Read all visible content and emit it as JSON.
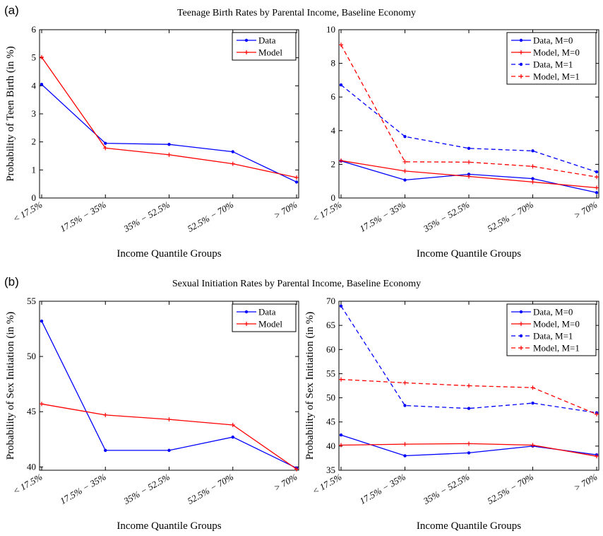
{
  "panels": [
    {
      "label": "(a)",
      "title": "Teenage Birth Rates by Parental Income, Baseline Economy"
    },
    {
      "label": "(b)",
      "title": "Sexual Initiation Rates by Parental Income, Baseline Economy"
    }
  ],
  "colors": {
    "data": "#0000ff",
    "model": "#ff0000",
    "axis": "#000000"
  },
  "chart_data": [
    {
      "type": "line",
      "categories": [
        "< 17.5%",
        "17.5% − 35%",
        "35% − 52.5%",
        "52.5% − 70%",
        "> 70%"
      ],
      "xlabel": "Income Quantile Groups",
      "ylabel": "Probability of Teen Birth (in %)",
      "ylim": [
        0,
        6
      ],
      "yticks": [
        0,
        1,
        2,
        3,
        4,
        5,
        6
      ],
      "legend_position": "top-right",
      "series": [
        {
          "name": "Data",
          "values": [
            4.05,
            1.95,
            1.91,
            1.65,
            0.57
          ],
          "color": "#0000ff",
          "dash": "solid",
          "marker": "dot"
        },
        {
          "name": "Model",
          "values": [
            5.02,
            1.78,
            1.54,
            1.22,
            0.73
          ],
          "color": "#ff0000",
          "dash": "solid",
          "marker": "plus"
        }
      ]
    },
    {
      "type": "line",
      "categories": [
        "< 17.5%",
        "17.5% − 35%",
        "35% − 52.5%",
        "52.5% − 70%",
        "> 70%"
      ],
      "xlabel": "Income Quantile Groups",
      "ylabel": "",
      "ylim": [
        0,
        10
      ],
      "yticks": [
        0,
        2,
        4,
        6,
        8,
        10
      ],
      "legend_position": "top-right",
      "series": [
        {
          "name": "Data, M=0",
          "values": [
            2.2,
            1.07,
            1.41,
            1.15,
            0.32
          ],
          "color": "#0000ff",
          "dash": "solid",
          "marker": "dot"
        },
        {
          "name": "Model, M=0",
          "values": [
            2.22,
            1.6,
            1.28,
            0.95,
            0.61
          ],
          "color": "#ff0000",
          "dash": "solid",
          "marker": "plus"
        },
        {
          "name": "Data, M=1",
          "values": [
            6.72,
            3.65,
            2.95,
            2.8,
            1.55
          ],
          "color": "#0000ff",
          "dash": "dashed",
          "marker": "dot"
        },
        {
          "name": "Model, M=1",
          "values": [
            9.1,
            2.15,
            2.13,
            1.88,
            1.25
          ],
          "color": "#ff0000",
          "dash": "dashed",
          "marker": "plus"
        }
      ]
    },
    {
      "type": "line",
      "categories": [
        "< 17.5%",
        "17.5% − 35%",
        "35% − 52.5%",
        "52.5% − 70%",
        "> 70%"
      ],
      "xlabel": "Income Quantile Groups",
      "ylabel": "Probability of Sex Initiation (in %)",
      "ylim": [
        39.7,
        55
      ],
      "yticks": [
        40,
        45,
        50,
        55
      ],
      "legend_position": "top-right",
      "series": [
        {
          "name": "Data",
          "values": [
            53.2,
            41.5,
            41.5,
            42.7,
            39.9
          ],
          "color": "#0000ff",
          "dash": "solid",
          "marker": "dot"
        },
        {
          "name": "Model",
          "values": [
            45.7,
            44.7,
            44.3,
            43.8,
            39.8
          ],
          "color": "#ff0000",
          "dash": "solid",
          "marker": "plus"
        }
      ]
    },
    {
      "type": "line",
      "categories": [
        "< 17.5%",
        "17.5% − 35%",
        "35% − 52.5%",
        "52.5% − 70%",
        "> 70%"
      ],
      "xlabel": "Income Quantile Groups",
      "ylabel": "Probability of Sex Initiation (in %)",
      "ylim": [
        35,
        70
      ],
      "yticks": [
        35,
        40,
        45,
        50,
        55,
        60,
        65,
        70
      ],
      "legend_position": "top-right",
      "series": [
        {
          "name": "Data, M=0",
          "values": [
            42.3,
            38.0,
            38.6,
            40.0,
            38.2
          ],
          "color": "#0000ff",
          "dash": "solid",
          "marker": "dot"
        },
        {
          "name": "Model, M=0",
          "values": [
            40.2,
            40.4,
            40.5,
            40.2,
            37.9
          ],
          "color": "#ff0000",
          "dash": "solid",
          "marker": "plus"
        },
        {
          "name": "Data, M=1",
          "values": [
            69.0,
            48.4,
            47.8,
            48.9,
            46.9
          ],
          "color": "#0000ff",
          "dash": "dashed",
          "marker": "dot"
        },
        {
          "name": "Model, M=1",
          "values": [
            53.8,
            53.1,
            52.5,
            52.1,
            46.6
          ],
          "color": "#ff0000",
          "dash": "dashed",
          "marker": "plus"
        }
      ]
    }
  ]
}
